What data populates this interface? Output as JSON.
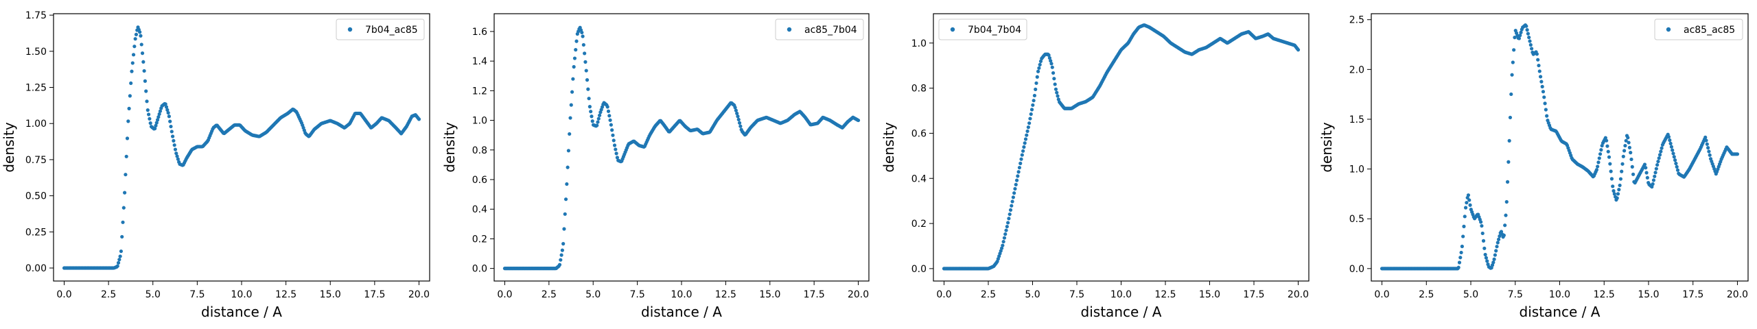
{
  "chart_data": [
    {
      "type": "scatter",
      "xlabel": "distance / A",
      "ylabel": "density",
      "xlim": [
        -0.6,
        20.6
      ],
      "ylim": [
        -0.09,
        1.76
      ],
      "xticks": [
        "0.0",
        "2.5",
        "5.0",
        "7.5",
        "10.0",
        "12.5",
        "15.0",
        "17.5",
        "20.0"
      ],
      "yticks": [
        "0.00",
        "0.25",
        "0.50",
        "0.75",
        "1.00",
        "1.25",
        "1.50",
        "1.75"
      ],
      "legend_position": "top-right",
      "color": "#1f77b4",
      "series": [
        {
          "name": "7b04_ac85",
          "profile": [
            [
              0,
              0
            ],
            [
              2.8,
              0
            ],
            [
              3.0,
              0.01
            ],
            [
              3.2,
              0.1
            ],
            [
              3.4,
              0.5
            ],
            [
              3.6,
              1.0
            ],
            [
              3.8,
              1.35
            ],
            [
              4.0,
              1.58
            ],
            [
              4.15,
              1.67
            ],
            [
              4.3,
              1.62
            ],
            [
              4.5,
              1.38
            ],
            [
              4.7,
              1.1
            ],
            [
              4.9,
              0.98
            ],
            [
              5.1,
              0.96
            ],
            [
              5.3,
              1.04
            ],
            [
              5.5,
              1.12
            ],
            [
              5.7,
              1.14
            ],
            [
              5.9,
              1.06
            ],
            [
              6.1,
              0.92
            ],
            [
              6.3,
              0.8
            ],
            [
              6.5,
              0.72
            ],
            [
              6.7,
              0.71
            ],
            [
              6.9,
              0.76
            ],
            [
              7.2,
              0.82
            ],
            [
              7.5,
              0.84
            ],
            [
              7.8,
              0.84
            ],
            [
              8.1,
              0.88
            ],
            [
              8.4,
              0.97
            ],
            [
              8.6,
              0.99
            ],
            [
              8.8,
              0.96
            ],
            [
              9.0,
              0.93
            ],
            [
              9.3,
              0.96
            ],
            [
              9.6,
              0.99
            ],
            [
              9.9,
              0.99
            ],
            [
              10.2,
              0.95
            ],
            [
              10.6,
              0.92
            ],
            [
              11.0,
              0.91
            ],
            [
              11.4,
              0.94
            ],
            [
              11.8,
              0.99
            ],
            [
              12.2,
              1.04
            ],
            [
              12.6,
              1.07
            ],
            [
              12.9,
              1.1
            ],
            [
              13.1,
              1.08
            ],
            [
              13.4,
              1.0
            ],
            [
              13.6,
              0.93
            ],
            [
              13.8,
              0.91
            ],
            [
              14.1,
              0.96
            ],
            [
              14.5,
              1.0
            ],
            [
              15.0,
              1.02
            ],
            [
              15.4,
              1.0
            ],
            [
              15.8,
              0.97
            ],
            [
              16.1,
              1.0
            ],
            [
              16.4,
              1.07
            ],
            [
              16.7,
              1.07
            ],
            [
              17.0,
              1.02
            ],
            [
              17.3,
              0.97
            ],
            [
              17.6,
              1.0
            ],
            [
              17.9,
              1.04
            ],
            [
              18.3,
              1.02
            ],
            [
              18.7,
              0.97
            ],
            [
              19.0,
              0.93
            ],
            [
              19.3,
              0.98
            ],
            [
              19.6,
              1.05
            ],
            [
              19.8,
              1.06
            ],
            [
              20.0,
              1.03
            ]
          ]
        }
      ]
    },
    {
      "type": "scatter",
      "xlabel": "distance / A",
      "ylabel": "density",
      "xlim": [
        -0.6,
        20.6
      ],
      "ylim": [
        -0.085,
        1.72
      ],
      "xticks": [
        "0.0",
        "2.5",
        "5.0",
        "7.5",
        "10.0",
        "12.5",
        "15.0",
        "17.5",
        "20.0"
      ],
      "yticks": [
        "0.0",
        "0.2",
        "0.4",
        "0.6",
        "0.8",
        "1.0",
        "1.2",
        "1.4",
        "1.6"
      ],
      "legend_position": "top-right",
      "color": "#1f77b4",
      "series": [
        {
          "name": "ac85_7b04",
          "profile": [
            [
              0,
              0
            ],
            [
              2.9,
              0
            ],
            [
              3.1,
              0.02
            ],
            [
              3.3,
              0.15
            ],
            [
              3.5,
              0.55
            ],
            [
              3.7,
              1.0
            ],
            [
              3.9,
              1.35
            ],
            [
              4.1,
              1.58
            ],
            [
              4.25,
              1.63
            ],
            [
              4.4,
              1.58
            ],
            [
              4.6,
              1.35
            ],
            [
              4.8,
              1.1
            ],
            [
              5.0,
              0.97
            ],
            [
              5.2,
              0.96
            ],
            [
              5.4,
              1.05
            ],
            [
              5.6,
              1.12
            ],
            [
              5.8,
              1.1
            ],
            [
              6.0,
              0.98
            ],
            [
              6.2,
              0.84
            ],
            [
              6.4,
              0.73
            ],
            [
              6.6,
              0.72
            ],
            [
              6.8,
              0.78
            ],
            [
              7.0,
              0.84
            ],
            [
              7.3,
              0.86
            ],
            [
              7.6,
              0.83
            ],
            [
              7.9,
              0.82
            ],
            [
              8.2,
              0.9
            ],
            [
              8.5,
              0.96
            ],
            [
              8.8,
              1.0
            ],
            [
              9.0,
              0.97
            ],
            [
              9.3,
              0.92
            ],
            [
              9.6,
              0.96
            ],
            [
              9.9,
              1.0
            ],
            [
              10.2,
              0.96
            ],
            [
              10.5,
              0.93
            ],
            [
              10.9,
              0.94
            ],
            [
              11.2,
              0.91
            ],
            [
              11.6,
              0.92
            ],
            [
              12.0,
              1.0
            ],
            [
              12.4,
              1.06
            ],
            [
              12.8,
              1.12
            ],
            [
              13.0,
              1.1
            ],
            [
              13.2,
              1.02
            ],
            [
              13.4,
              0.93
            ],
            [
              13.6,
              0.9
            ],
            [
              13.9,
              0.95
            ],
            [
              14.3,
              1.0
            ],
            [
              14.8,
              1.02
            ],
            [
              15.2,
              1.0
            ],
            [
              15.6,
              0.98
            ],
            [
              16.0,
              1.0
            ],
            [
              16.4,
              1.04
            ],
            [
              16.7,
              1.06
            ],
            [
              17.0,
              1.02
            ],
            [
              17.3,
              0.97
            ],
            [
              17.7,
              0.98
            ],
            [
              18.0,
              1.02
            ],
            [
              18.4,
              1.0
            ],
            [
              18.8,
              0.97
            ],
            [
              19.1,
              0.95
            ],
            [
              19.4,
              0.99
            ],
            [
              19.7,
              1.02
            ],
            [
              20.0,
              1.0
            ]
          ]
        }
      ]
    },
    {
      "type": "scatter",
      "xlabel": "distance / A",
      "ylabel": "density",
      "xlim": [
        -0.6,
        20.6
      ],
      "ylim": [
        -0.055,
        1.13
      ],
      "xticks": [
        "0.0",
        "2.5",
        "5.0",
        "7.5",
        "10.0",
        "12.5",
        "15.0",
        "17.5",
        "20.0"
      ],
      "yticks": [
        "0.0",
        "0.2",
        "0.4",
        "0.6",
        "0.8",
        "1.0"
      ],
      "legend_position": "top-left",
      "color": "#1f77b4",
      "series": [
        {
          "name": "7b04_7b04",
          "profile": [
            [
              0,
              0
            ],
            [
              2.5,
              0
            ],
            [
              2.8,
              0.01
            ],
            [
              3.0,
              0.03
            ],
            [
              3.3,
              0.1
            ],
            [
              3.6,
              0.2
            ],
            [
              4.0,
              0.35
            ],
            [
              4.4,
              0.5
            ],
            [
              4.8,
              0.64
            ],
            [
              5.1,
              0.76
            ],
            [
              5.3,
              0.87
            ],
            [
              5.5,
              0.93
            ],
            [
              5.7,
              0.95
            ],
            [
              5.9,
              0.95
            ],
            [
              6.1,
              0.9
            ],
            [
              6.3,
              0.8
            ],
            [
              6.5,
              0.74
            ],
            [
              6.8,
              0.71
            ],
            [
              7.2,
              0.71
            ],
            [
              7.6,
              0.73
            ],
            [
              8.0,
              0.74
            ],
            [
              8.4,
              0.76
            ],
            [
              8.8,
              0.81
            ],
            [
              9.2,
              0.87
            ],
            [
              9.6,
              0.92
            ],
            [
              10.0,
              0.97
            ],
            [
              10.4,
              1.0
            ],
            [
              10.7,
              1.04
            ],
            [
              11.0,
              1.07
            ],
            [
              11.3,
              1.08
            ],
            [
              11.6,
              1.07
            ],
            [
              12.0,
              1.05
            ],
            [
              12.4,
              1.03
            ],
            [
              12.8,
              1.0
            ],
            [
              13.2,
              0.98
            ],
            [
              13.6,
              0.96
            ],
            [
              14.0,
              0.95
            ],
            [
              14.4,
              0.97
            ],
            [
              14.8,
              0.98
            ],
            [
              15.2,
              1.0
            ],
            [
              15.6,
              1.02
            ],
            [
              16.0,
              1.0
            ],
            [
              16.4,
              1.02
            ],
            [
              16.8,
              1.04
            ],
            [
              17.2,
              1.05
            ],
            [
              17.6,
              1.02
            ],
            [
              18.0,
              1.03
            ],
            [
              18.3,
              1.04
            ],
            [
              18.6,
              1.02
            ],
            [
              19.0,
              1.01
            ],
            [
              19.4,
              1.0
            ],
            [
              19.8,
              0.99
            ],
            [
              20.0,
              0.97
            ]
          ]
        }
      ]
    },
    {
      "type": "scatter",
      "xlabel": "distance / A",
      "ylabel": "density",
      "xlim": [
        -0.6,
        20.6
      ],
      "ylim": [
        -0.125,
        2.56
      ],
      "xticks": [
        "0.0",
        "2.5",
        "5.0",
        "7.5",
        "10.0",
        "12.5",
        "15.0",
        "17.5",
        "20.0"
      ],
      "yticks": [
        "0.0",
        "0.5",
        "1.0",
        "1.5",
        "2.0",
        "2.5"
      ],
      "legend_position": "top-right",
      "color": "#1f77b4",
      "series": [
        {
          "name": "ac85_ac85",
          "profile": [
            [
              0,
              0
            ],
            [
              4.3,
              0
            ],
            [
              4.5,
              0.2
            ],
            [
              4.7,
              0.6
            ],
            [
              4.85,
              0.75
            ],
            [
              5.0,
              0.6
            ],
            [
              5.2,
              0.5
            ],
            [
              5.4,
              0.55
            ],
            [
              5.6,
              0.45
            ],
            [
              5.8,
              0.15
            ],
            [
              6.0,
              0.02
            ],
            [
              6.15,
              0.0
            ],
            [
              6.3,
              0.08
            ],
            [
              6.5,
              0.25
            ],
            [
              6.7,
              0.38
            ],
            [
              6.85,
              0.3
            ],
            [
              7.0,
              0.6
            ],
            [
              7.15,
              1.2
            ],
            [
              7.3,
              1.9
            ],
            [
              7.5,
              2.4
            ],
            [
              7.7,
              2.3
            ],
            [
              7.9,
              2.42
            ],
            [
              8.1,
              2.45
            ],
            [
              8.3,
              2.3
            ],
            [
              8.5,
              2.15
            ],
            [
              8.7,
              2.18
            ],
            [
              8.9,
              1.95
            ],
            [
              9.1,
              1.75
            ],
            [
              9.3,
              1.5
            ],
            [
              9.5,
              1.4
            ],
            [
              9.8,
              1.38
            ],
            [
              10.1,
              1.28
            ],
            [
              10.4,
              1.25
            ],
            [
              10.7,
              1.1
            ],
            [
              11.0,
              1.05
            ],
            [
              11.3,
              1.02
            ],
            [
              11.6,
              0.98
            ],
            [
              11.9,
              0.92
            ],
            [
              12.1,
              1.0
            ],
            [
              12.4,
              1.25
            ],
            [
              12.6,
              1.32
            ],
            [
              12.8,
              1.1
            ],
            [
              13.0,
              0.8
            ],
            [
              13.2,
              0.68
            ],
            [
              13.4,
              0.85
            ],
            [
              13.6,
              1.15
            ],
            [
              13.8,
              1.35
            ],
            [
              14.0,
              1.15
            ],
            [
              14.2,
              0.85
            ],
            [
              14.5,
              0.95
            ],
            [
              14.8,
              1.05
            ],
            [
              15.0,
              0.85
            ],
            [
              15.2,
              0.82
            ],
            [
              15.5,
              1.05
            ],
            [
              15.8,
              1.25
            ],
            [
              16.1,
              1.35
            ],
            [
              16.4,
              1.15
            ],
            [
              16.7,
              0.95
            ],
            [
              17.0,
              0.92
            ],
            [
              17.3,
              1.0
            ],
            [
              17.6,
              1.1
            ],
            [
              17.9,
              1.2
            ],
            [
              18.2,
              1.32
            ],
            [
              18.5,
              1.1
            ],
            [
              18.8,
              0.95
            ],
            [
              19.1,
              1.1
            ],
            [
              19.4,
              1.22
            ],
            [
              19.7,
              1.15
            ],
            [
              20.0,
              1.15
            ]
          ]
        }
      ]
    }
  ]
}
